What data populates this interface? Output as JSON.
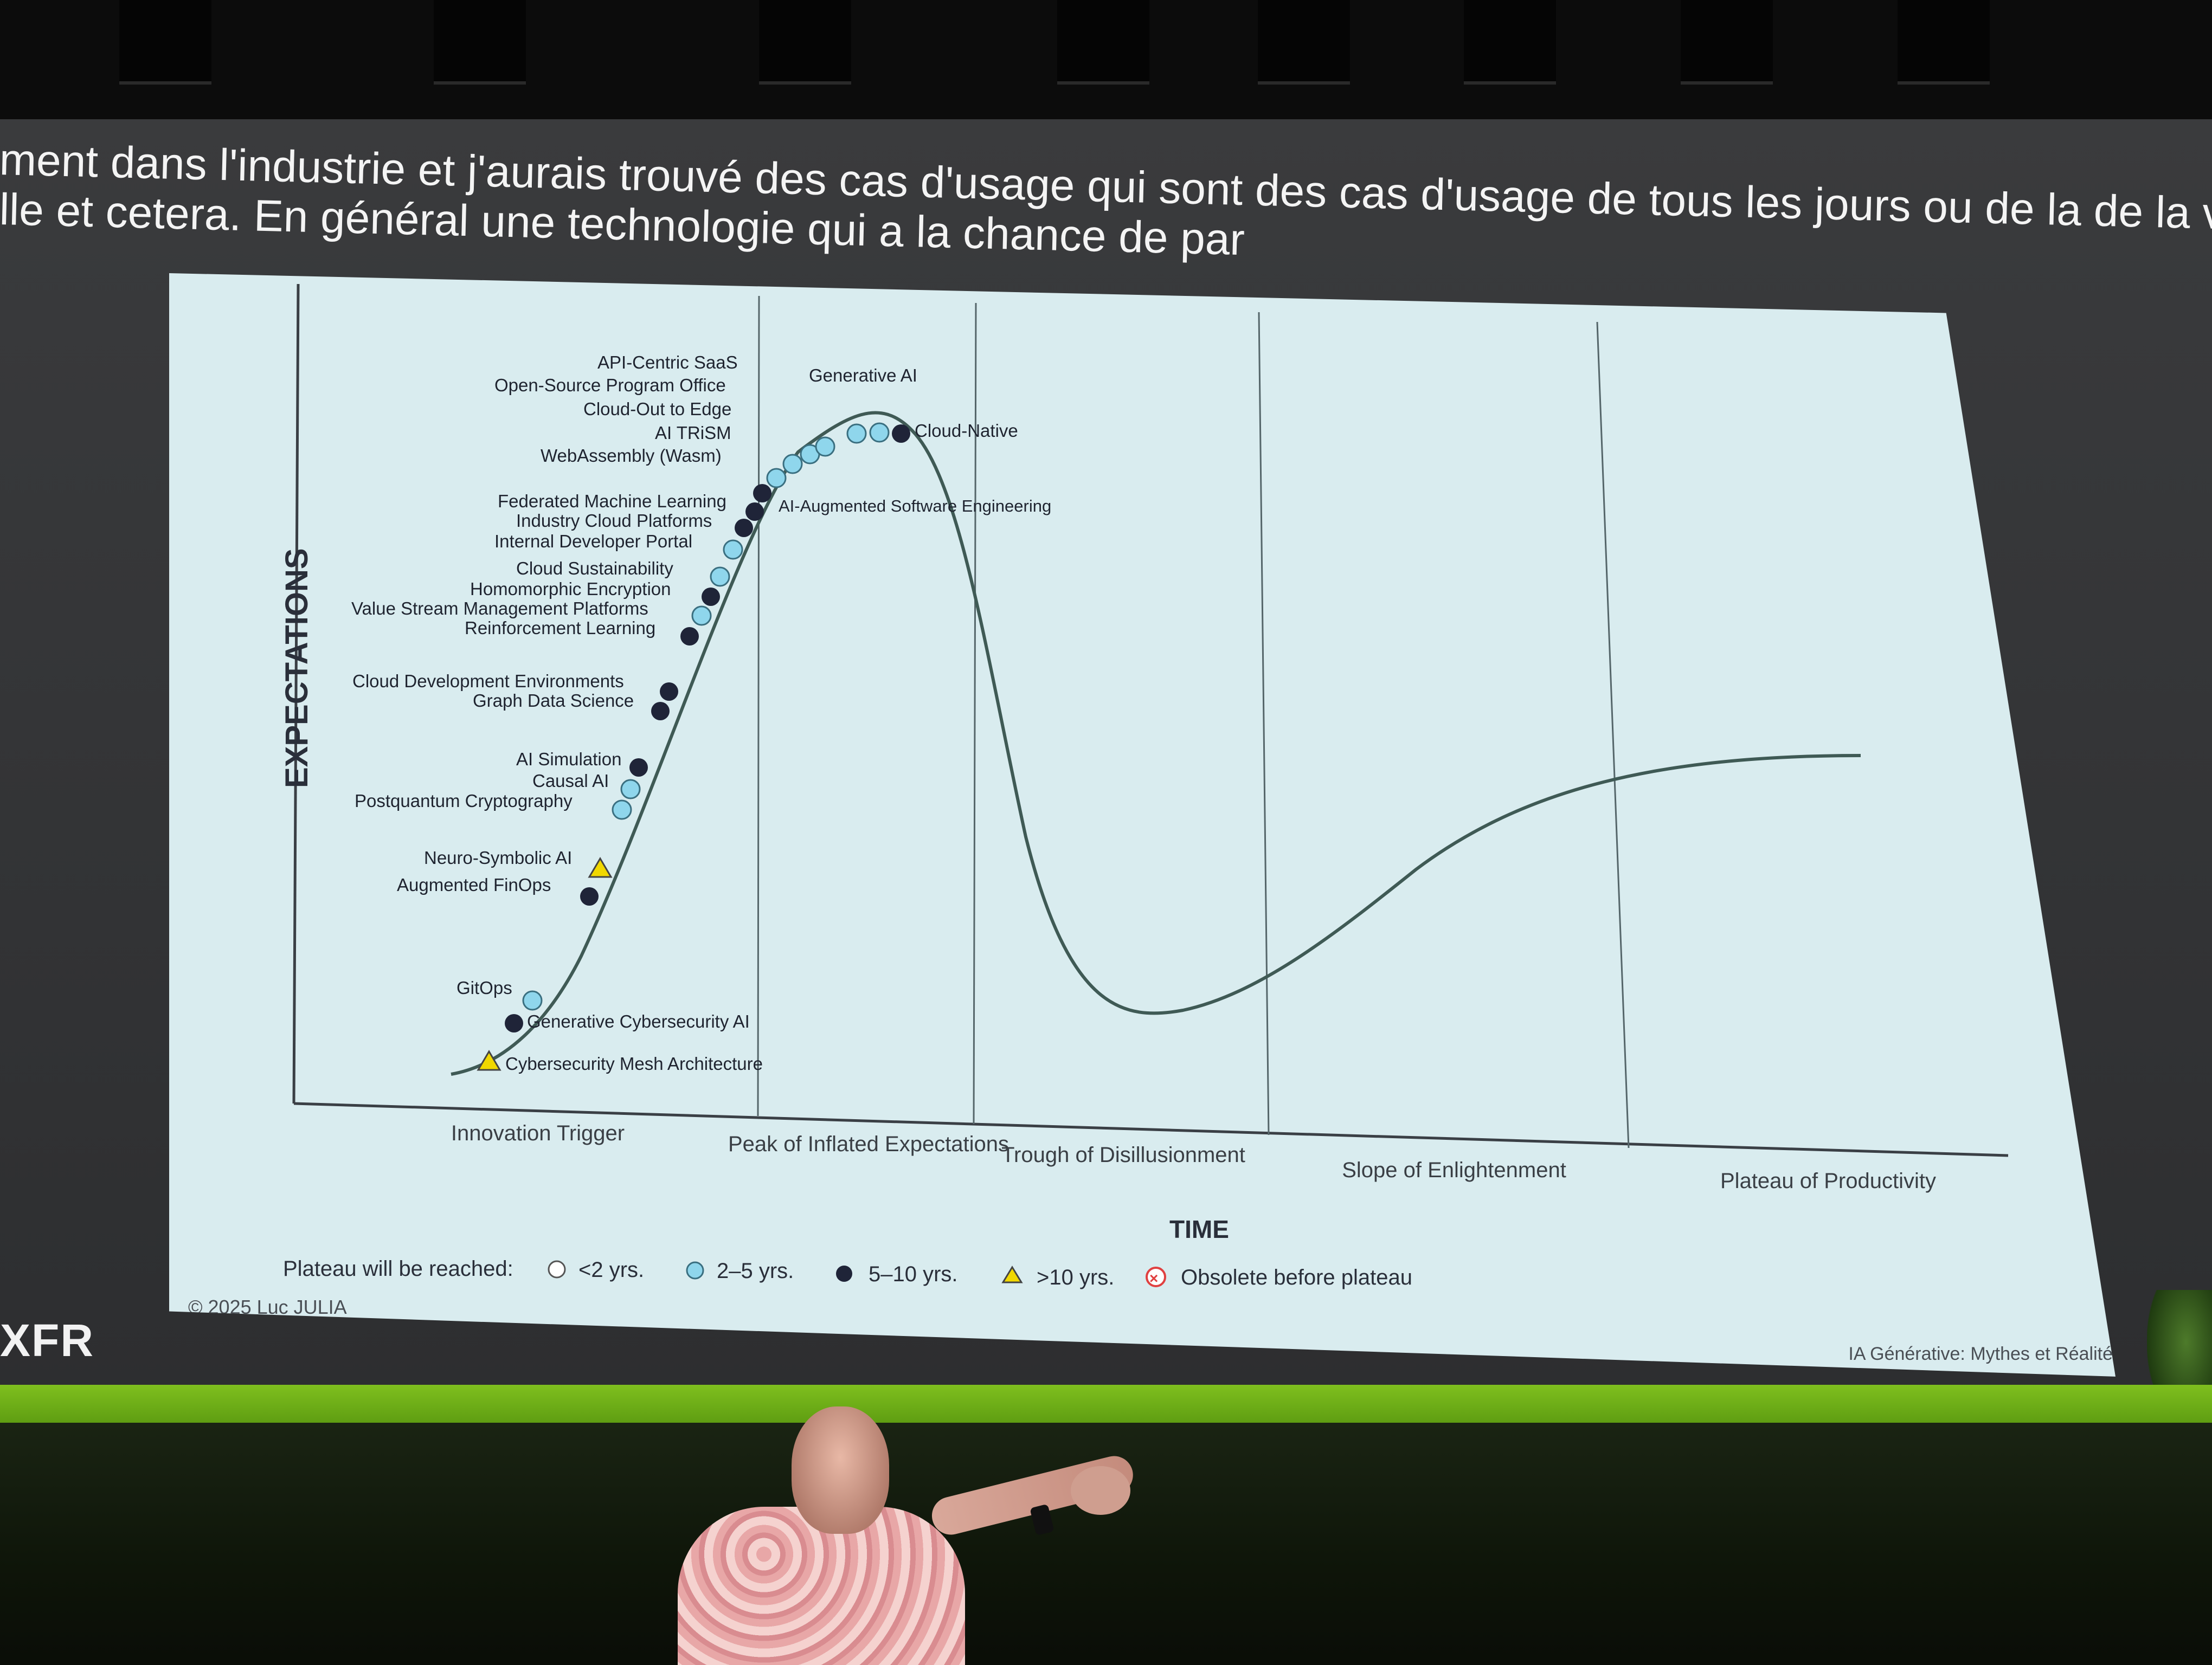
{
  "subtitle": {
    "line1": "ment dans l'industrie et j'aurais trouvé des cas d'usage qui sont des cas d'usage de tous les jours ou de la de la vie",
    "line2": "lle et cetera. En général une technologie qui a la chance de par"
  },
  "brand": {
    "logo_text": "XFR"
  },
  "slide": {
    "y_axis_label": "EXPECTATIONS",
    "x_axis_label": "TIME",
    "phases": [
      "Innovation Trigger",
      "Peak of Inflated Expectations",
      "Trough of Disillusionment",
      "Slope of Enlightenment",
      "Plateau of Productivity"
    ],
    "technologies": [
      {
        "name": "Cybersecurity Mesh Architecture",
        "plateau": ">10 yrs."
      },
      {
        "name": "Generative Cybersecurity AI",
        "plateau": "5–10 yrs."
      },
      {
        "name": "GitOps",
        "plateau": "2–5 yrs."
      },
      {
        "name": "Augmented FinOps",
        "plateau": "5–10 yrs."
      },
      {
        "name": "Neuro-Symbolic AI",
        "plateau": ">10 yrs."
      },
      {
        "name": "Postquantum Cryptography",
        "plateau": "2–5 yrs."
      },
      {
        "name": "Causal AI",
        "plateau": "2–5 yrs."
      },
      {
        "name": "AI Simulation",
        "plateau": "5–10 yrs."
      },
      {
        "name": "Graph Data Science",
        "plateau": "5–10 yrs."
      },
      {
        "name": "Cloud Development Environments",
        "plateau": "5–10 yrs."
      },
      {
        "name": "Reinforcement Learning",
        "plateau": "5–10 yrs."
      },
      {
        "name": "Value Stream Management Platforms",
        "plateau": "2–5 yrs."
      },
      {
        "name": "Homomorphic Encryption",
        "plateau": "5–10 yrs."
      },
      {
        "name": "Cloud Sustainability",
        "plateau": "2–5 yrs."
      },
      {
        "name": "Internal Developer Portal",
        "plateau": "2–5 yrs."
      },
      {
        "name": "Industry Cloud Platforms",
        "plateau": "5–10 yrs."
      },
      {
        "name": "Federated Machine Learning",
        "plateau": "5–10 yrs."
      },
      {
        "name": "WebAssembly (Wasm)",
        "plateau": "2–5 yrs."
      },
      {
        "name": "AI TRiSM",
        "plateau": "2–5 yrs."
      },
      {
        "name": "Cloud-Out to Edge",
        "plateau": "2–5 yrs."
      },
      {
        "name": "Open-Source Program Office",
        "plateau": "2–5 yrs."
      },
      {
        "name": "API-Centric SaaS",
        "plateau": "2–5 yrs."
      },
      {
        "name": "Generative AI",
        "plateau": "2–5 yrs."
      },
      {
        "name": "AI-Augmented Software Engineering",
        "plateau": "2–5 yrs."
      },
      {
        "name": "Cloud-Native",
        "plateau": "5–10 yrs."
      }
    ],
    "legend": {
      "title": "Plateau will be reached:",
      "items": [
        "<2 yrs.",
        "2–5 yrs.",
        "5–10 yrs.",
        ">10 yrs.",
        "Obsolete before plateau"
      ]
    },
    "copyright": "© 2025 Luc JULIA",
    "footer": "IA Générative: Mythes et Réalité"
  },
  "colors": {
    "slide_bg": "#d9ecef",
    "curve": "#3f5a55",
    "two_to_five": "#8fd6ec",
    "five_to_ten": "#1f2438",
    "over_ten": "#f1d800",
    "obsolete": "#e04040",
    "accent_green": "#7fbf1e"
  }
}
